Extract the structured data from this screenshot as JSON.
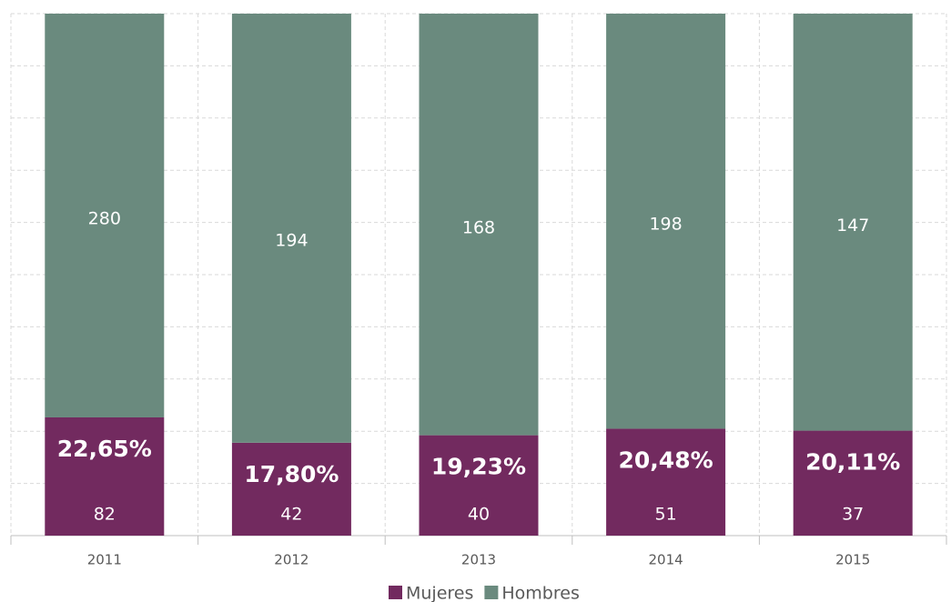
{
  "chart_data": {
    "type": "stacked_percent_bar",
    "categories": [
      "2011",
      "2012",
      "2013",
      "2014",
      "2015"
    ],
    "series": [
      {
        "name": "Mujeres",
        "color": "#722a5f",
        "values": [
          82,
          42,
          40,
          51,
          37
        ]
      },
      {
        "name": "Hombres",
        "color": "#6a8a7e",
        "values": [
          280,
          194,
          168,
          198,
          147
        ]
      }
    ],
    "annotations": [
      "22,65%",
      "17,80%",
      "19,23%",
      "20,48%",
      "20,11%"
    ],
    "ylim": [
      0,
      100
    ],
    "yticks": [
      0,
      10,
      20,
      30,
      40,
      50,
      60,
      70,
      80,
      90,
      100
    ],
    "grid": true,
    "legend": "bottom"
  }
}
